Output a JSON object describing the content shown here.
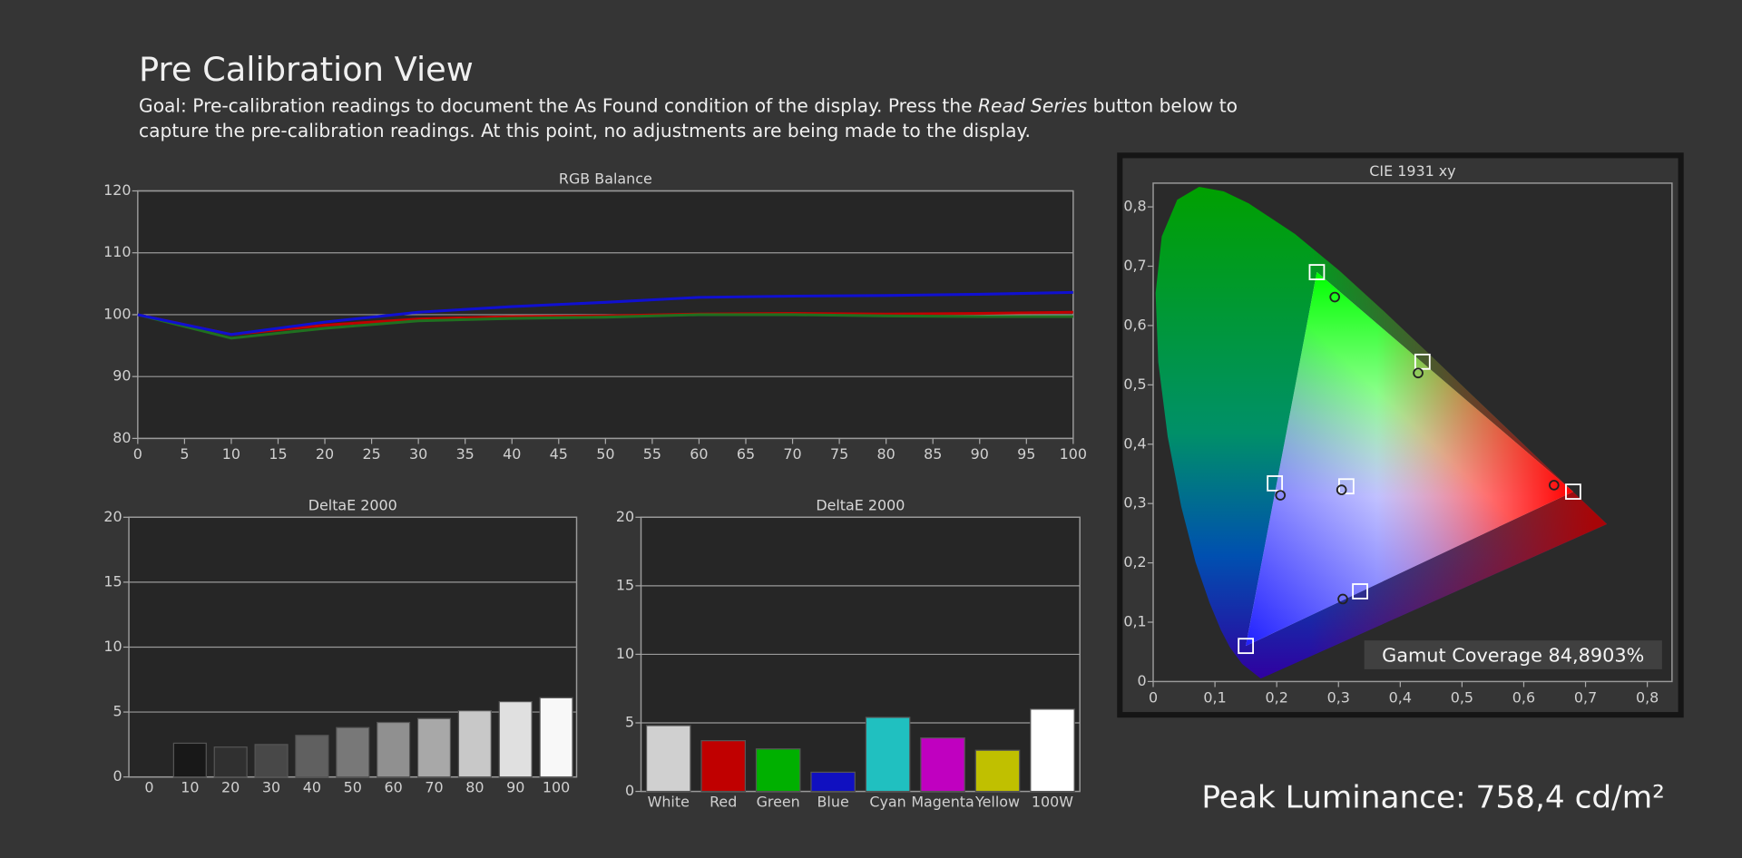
{
  "header": {
    "title": "Pre Calibration View",
    "goal": [
      "Goal: Pre-calibration readings to document the As Found condition of the display. Press the ",
      "Read Series",
      " button below to"
    ],
    "goal_line2": "capture the pre-calibration readings. At this point, no adjustments are being made to the display."
  },
  "chart_data": [
    {
      "type": "line",
      "title": "RGB Balance",
      "grid": true,
      "x": [
        0,
        10,
        20,
        30,
        40,
        50,
        60,
        70,
        80,
        90,
        100
      ],
      "xlim": [
        0,
        100
      ],
      "xticks": [
        0,
        5,
        10,
        15,
        20,
        25,
        30,
        35,
        40,
        45,
        50,
        55,
        60,
        65,
        70,
        75,
        80,
        85,
        90,
        95,
        100
      ],
      "ylim": [
        80,
        120
      ],
      "yticks": [
        80,
        90,
        100,
        110,
        120
      ],
      "series": [
        {
          "color": "#c00000",
          "values": [
            100,
            96.8,
            98.3,
            99.3,
            99.7,
            99.8,
            100.1,
            100.2,
            100.1,
            100.2,
            100.4
          ]
        },
        {
          "color": "#207020",
          "values": [
            100,
            96.2,
            97.8,
            99.0,
            99.4,
            99.6,
            100.0,
            100.0,
            99.8,
            99.7,
            99.7
          ]
        },
        {
          "color": "#1010d0",
          "values": [
            100,
            96.8,
            98.8,
            100.4,
            101.3,
            102.0,
            102.8,
            103.0,
            103.1,
            103.3,
            103.6
          ]
        }
      ]
    },
    {
      "type": "bar",
      "title": "DeltaE 2000",
      "grid": true,
      "categories": [
        "0",
        "10",
        "20",
        "30",
        "40",
        "50",
        "60",
        "70",
        "80",
        "90",
        "100"
      ],
      "values": [
        null,
        2.6,
        2.3,
        2.5,
        3.2,
        3.8,
        4.2,
        4.5,
        5.1,
        5.8,
        6.1
      ],
      "colors": [
        "#101010",
        "#181818",
        "#303030",
        "#484848",
        "#606060",
        "#787878",
        "#909090",
        "#a8a8a8",
        "#c8c8c8",
        "#e0e0e0",
        "#f8f8f8"
      ],
      "ylim": [
        0,
        20
      ],
      "yticks": [
        0,
        5,
        10,
        15,
        20
      ]
    },
    {
      "type": "bar",
      "title": "DeltaE 2000",
      "grid": true,
      "categories": [
        "White",
        "Red",
        "Green",
        "Blue",
        "Cyan",
        "Magenta",
        "Yellow",
        "100W"
      ],
      "values": [
        4.8,
        3.7,
        3.1,
        1.4,
        5.4,
        3.9,
        3.0,
        6.0
      ],
      "colors": [
        "#d0d0d0",
        "#c00000",
        "#00b000",
        "#1010c0",
        "#20c0c0",
        "#c000c0",
        "#c0c000",
        "#ffffff"
      ],
      "ylim": [
        0,
        20
      ],
      "yticks": [
        0,
        5,
        10,
        15,
        20
      ]
    },
    {
      "type": "scatter",
      "title": "CIE 1931 xy",
      "grid": false,
      "xlim": [
        0,
        0.84
      ],
      "ylim": [
        0,
        0.84
      ],
      "xticks": [
        0,
        {
          "value": 0.1,
          "label": "0,1"
        },
        {
          "value": 0.2,
          "label": "0,2"
        },
        {
          "value": 0.3,
          "label": "0,3"
        },
        {
          "value": 0.4,
          "label": "0,4"
        },
        {
          "value": 0.5,
          "label": "0,5"
        },
        {
          "value": 0.6,
          "label": "0,6"
        },
        {
          "value": 0.7,
          "label": "0,7"
        },
        {
          "value": 0.8,
          "label": "0,8"
        }
      ],
      "yticks": [
        0,
        {
          "value": 0.1,
          "label": "0,1"
        },
        {
          "value": 0.2,
          "label": "0,2"
        },
        {
          "value": 0.3,
          "label": "0,3"
        },
        {
          "value": 0.4,
          "label": "0,4"
        },
        {
          "value": 0.5,
          "label": "0,5"
        },
        {
          "value": 0.6,
          "label": "0,6"
        },
        {
          "value": 0.7,
          "label": "0,7"
        },
        {
          "value": 0.8,
          "label": "0,8"
        }
      ],
      "series": [
        {
          "marker": "square",
          "color": "#ffffff",
          "x": [
            0.68,
            0.265,
            0.15,
            0.3127,
            0.197,
            0.335,
            0.436
          ],
          "y": [
            0.32,
            0.69,
            0.06,
            0.329,
            0.334,
            0.152,
            0.539
          ]
        },
        {
          "marker": "circle",
          "color": "#222222",
          "x": [
            0.649,
            0.294,
            0.305,
            0.206,
            0.307,
            0.429
          ],
          "y": [
            0.331,
            0.648,
            0.323,
            0.314,
            0.139,
            0.52
          ]
        }
      ],
      "annotation": "Gamut Coverage 84,8903%"
    }
  ],
  "peak_luminance": "Peak Luminance: 758,4 cd/m²"
}
